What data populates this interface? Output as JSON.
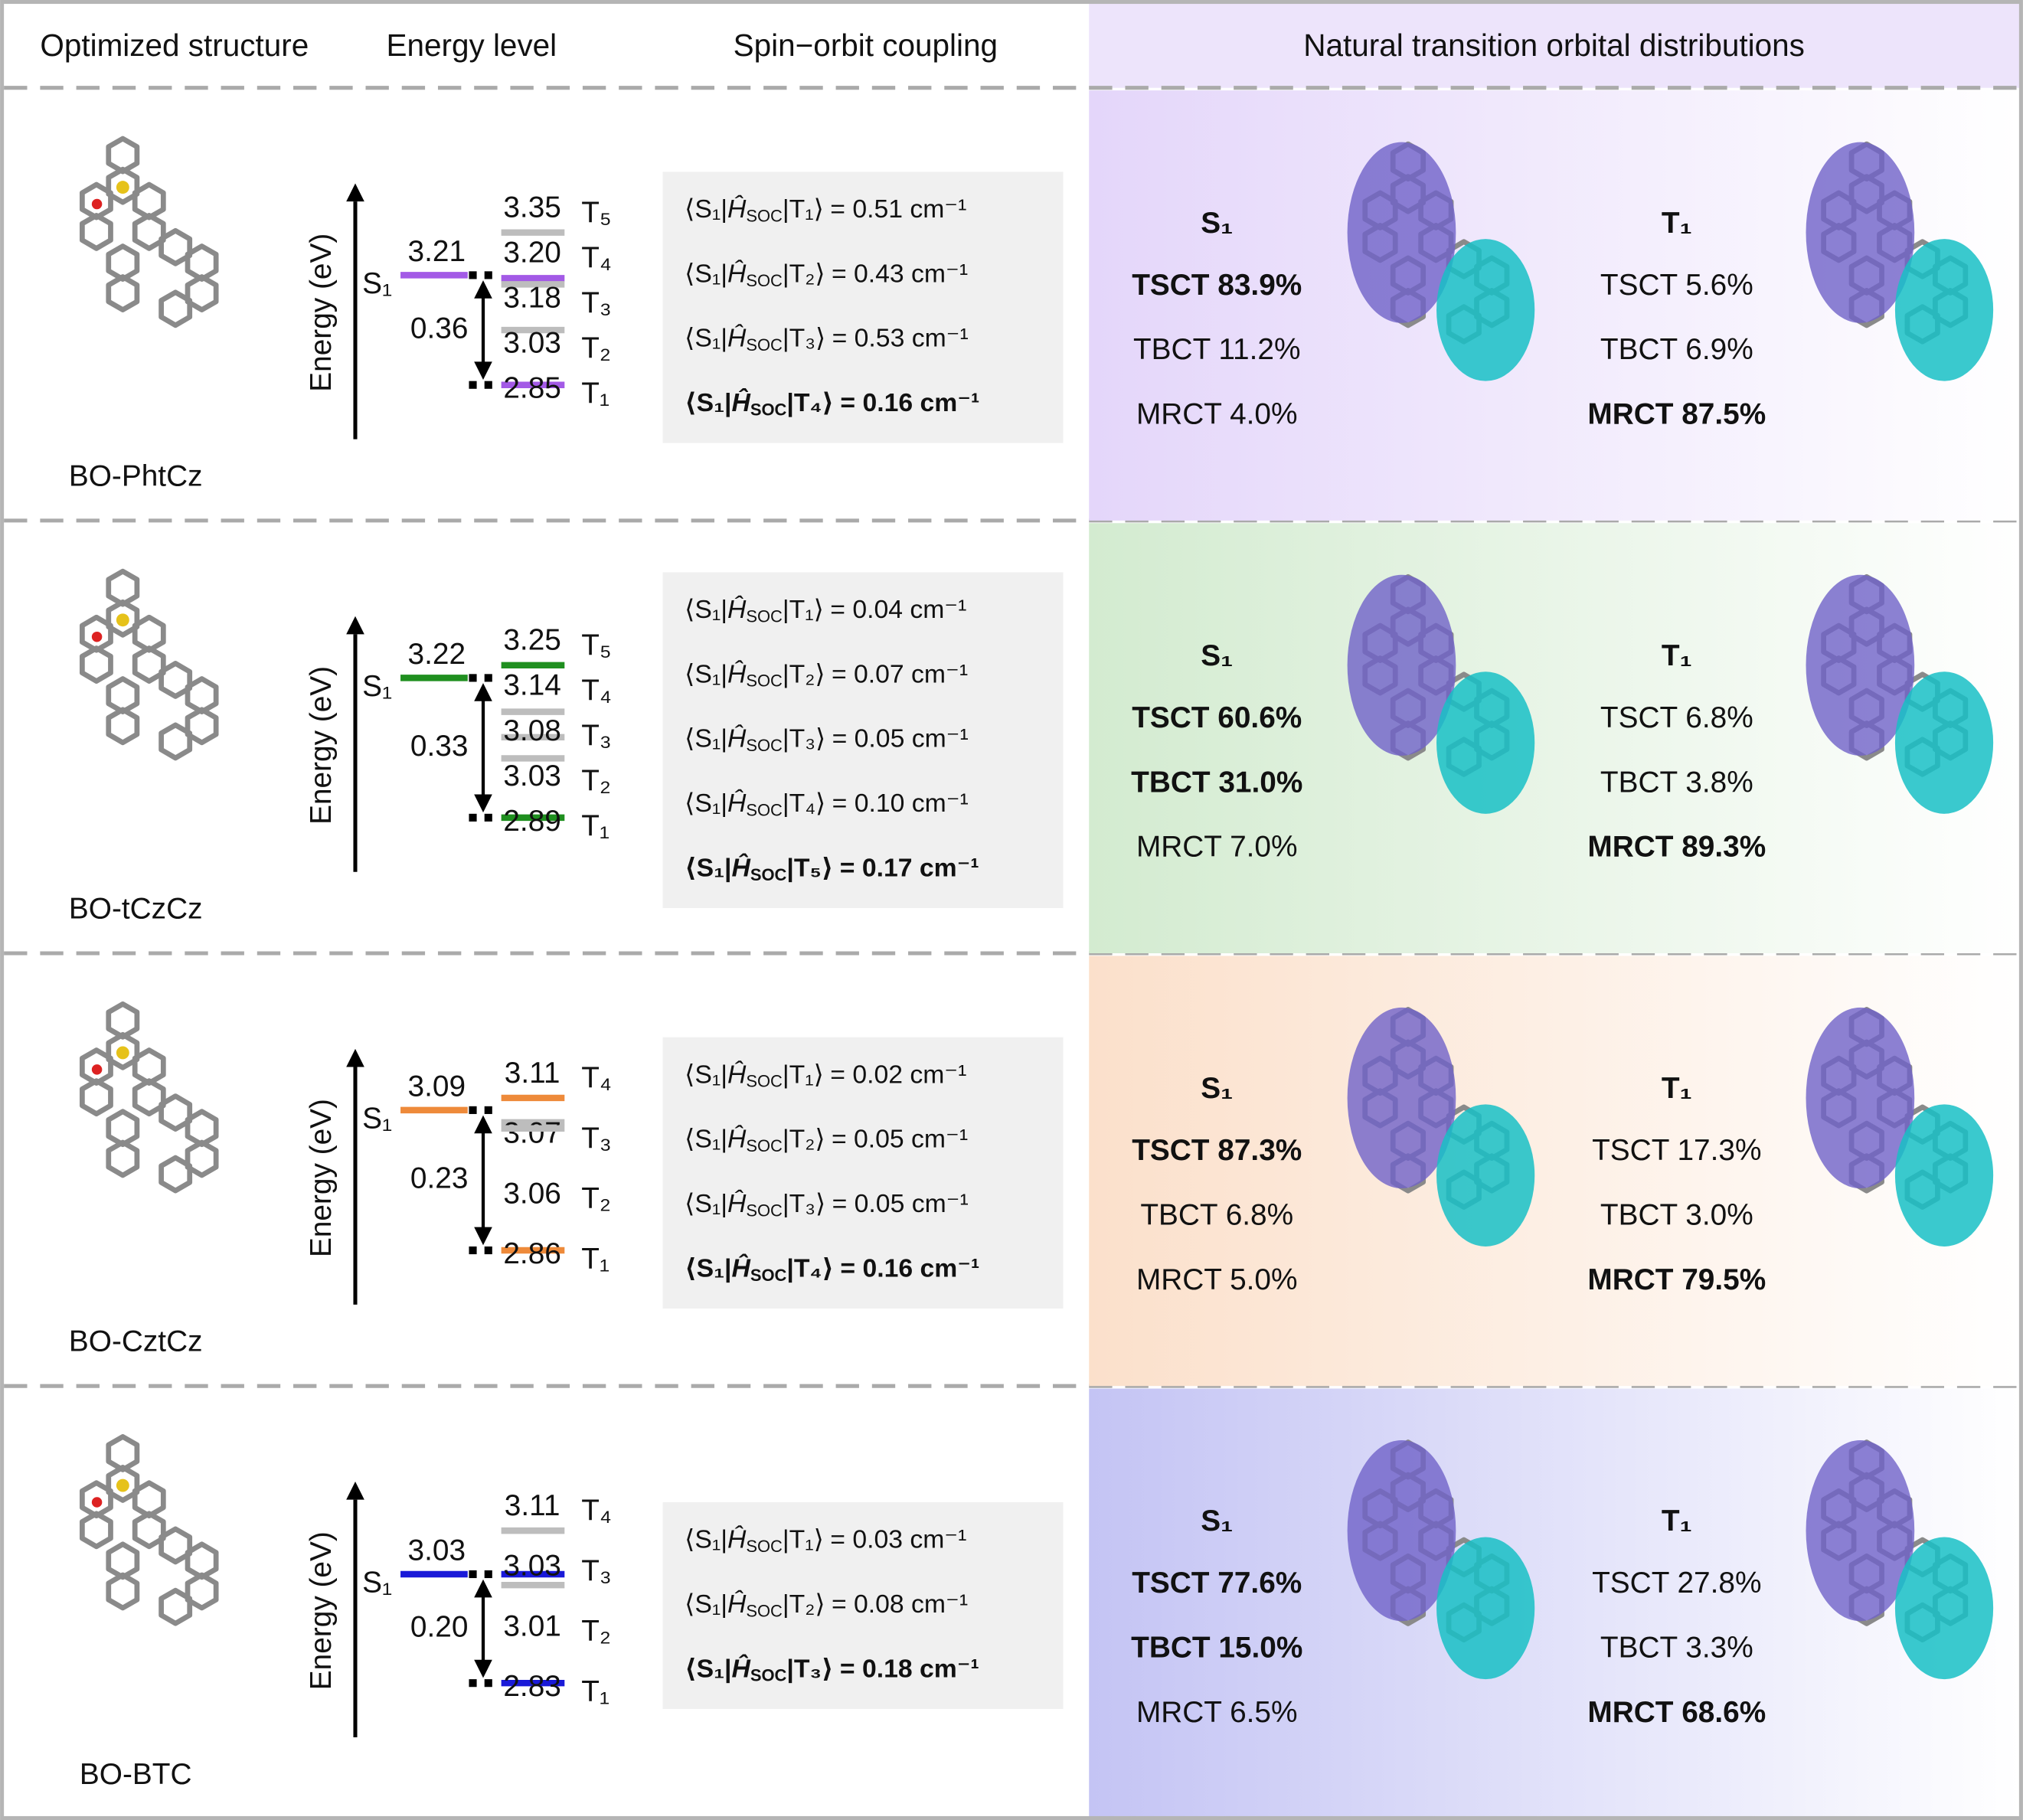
{
  "header": {
    "structure": "Optimized structure",
    "energy": "Energy level",
    "soc": "Spin−orbit coupling",
    "nto": "Natural transition orbital distributions"
  },
  "rows": [
    {
      "molecule": "BO-PhtCz",
      "color": "#a35ae6",
      "background": "#e4d6fa",
      "energy": {
        "axis_label": "Energy (eV)",
        "s1_label": "S₁",
        "s1": "3.21",
        "gap": "0.36",
        "triplets": [
          {
            "label": "T₅",
            "value": "3.35",
            "color": "#bdbdbd"
          },
          {
            "label": "T₄",
            "value": "3.20",
            "color": "#a35ae6"
          },
          {
            "label": "T₃",
            "value": "3.18",
            "color": "#bdbdbd"
          },
          {
            "label": "T₂",
            "value": "3.03",
            "color": "#bdbdbd"
          },
          {
            "label": "T₁",
            "value": "2.85",
            "color": "#a35ae6"
          }
        ]
      },
      "soc": [
        {
          "bra": "⟨S₁|",
          "op": "Ĥ",
          "op_sub": "SOC",
          "ket": "|T₁⟩",
          "value": "= 0.51 cm⁻¹",
          "bold": false
        },
        {
          "bra": "⟨S₁|",
          "op": "Ĥ",
          "op_sub": "SOC",
          "ket": "|T₂⟩",
          "value": "= 0.43 cm⁻¹",
          "bold": false
        },
        {
          "bra": "⟨S₁|",
          "op": "Ĥ",
          "op_sub": "SOC",
          "ket": "|T₃⟩",
          "value": "= 0.53 cm⁻¹",
          "bold": false
        },
        {
          "bra": "⟨S₁|",
          "op": "Ĥ",
          "op_sub": "SOC",
          "ket": "|T₄⟩",
          "value": "= 0.16 cm⁻¹",
          "bold": true
        }
      ],
      "nto": {
        "s1": {
          "title": "S₁",
          "lines": [
            {
              "text": "TSCT 83.9%",
              "bold": true,
              "color": "#1e1030"
            },
            {
              "text": "TBCT 11.2%",
              "bold": false,
              "color": "#4a78c0"
            },
            {
              "text": "MRCT 4.0%",
              "bold": false,
              "color": "#7a68c0"
            }
          ]
        },
        "t1": {
          "title": "T₁",
          "lines": [
            {
              "text": "TSCT 5.6%",
              "bold": false,
              "color": "#111111"
            },
            {
              "text": "TBCT 6.9%",
              "bold": false,
              "color": "#4a78c0"
            },
            {
              "text": "MRCT 87.5%",
              "bold": true,
              "color": "#4a66c4"
            }
          ]
        }
      }
    },
    {
      "molecule": "BO-tCzCz",
      "color": "#1f8f1f",
      "background": "#d3ebd0",
      "energy": {
        "axis_label": "Energy (eV)",
        "s1_label": "S₁",
        "s1": "3.22",
        "gap": "0.33",
        "triplets": [
          {
            "label": "T₅",
            "value": "3.25",
            "color": "#1f8f1f"
          },
          {
            "label": "T₄",
            "value": "3.14",
            "color": "#bdbdbd"
          },
          {
            "label": "T₃",
            "value": "3.08",
            "color": "#bdbdbd"
          },
          {
            "label": "T₂",
            "value": "3.03",
            "color": "#bdbdbd"
          },
          {
            "label": "T₁",
            "value": "2.89",
            "color": "#1f8f1f"
          }
        ]
      },
      "soc": [
        {
          "bra": "⟨S₁|",
          "op": "Ĥ",
          "op_sub": "SOC",
          "ket": "|T₁⟩",
          "value": "= 0.04 cm⁻¹",
          "bold": false
        },
        {
          "bra": "⟨S₁|",
          "op": "Ĥ",
          "op_sub": "SOC",
          "ket": "|T₂⟩",
          "value": "= 0.07 cm⁻¹",
          "bold": false
        },
        {
          "bra": "⟨S₁|",
          "op": "Ĥ",
          "op_sub": "SOC",
          "ket": "|T₃⟩",
          "value": "= 0.05 cm⁻¹",
          "bold": false
        },
        {
          "bra": "⟨S₁|",
          "op": "Ĥ",
          "op_sub": "SOC",
          "ket": "|T₄⟩",
          "value": "= 0.10 cm⁻¹",
          "bold": false
        },
        {
          "bra": "⟨S₁|",
          "op": "Ĥ",
          "op_sub": "SOC",
          "ket": "|T₅⟩",
          "value": "= 0.17 cm⁻¹",
          "bold": true
        }
      ],
      "nto": {
        "s1": {
          "title": "S₁",
          "lines": [
            {
              "text": "TSCT 60.6%",
              "bold": true,
              "color": "#102010"
            },
            {
              "text": "TBCT 31.0%",
              "bold": true,
              "color": "#1e80a0"
            },
            {
              "text": "MRCT 7.0%",
              "bold": false,
              "color": "#4a78c0"
            }
          ]
        },
        "t1": {
          "title": "T₁",
          "lines": [
            {
              "text": "TSCT 6.8%",
              "bold": false,
              "color": "#111111"
            },
            {
              "text": "TBCT 3.8%",
              "bold": false,
              "color": "#4a78c0"
            },
            {
              "text": "MRCT 89.3%",
              "bold": true,
              "color": "#4a66c4"
            }
          ]
        }
      }
    },
    {
      "molecule": "BO-CztCz",
      "color": "#ee8a3a",
      "background": "#fbe0cb",
      "energy": {
        "axis_label": "Energy (eV)",
        "s1_label": "S₁",
        "s1": "3.09",
        "gap": "0.23",
        "triplets": [
          {
            "label": "T₄",
            "value": "3.11",
            "color": "#ee8a3a"
          },
          {
            "label": "T₃",
            "value": "3.07",
            "color": "#bdbdbd"
          },
          {
            "label": "T₂",
            "value": "3.06",
            "color": "#bdbdbd"
          },
          {
            "label": "T₁",
            "value": "2.86",
            "color": "#ee8a3a"
          }
        ]
      },
      "soc": [
        {
          "bra": "⟨S₁|",
          "op": "Ĥ",
          "op_sub": "SOC",
          "ket": "|T₁⟩",
          "value": "= 0.02 cm⁻¹",
          "bold": false
        },
        {
          "bra": "⟨S₁|",
          "op": "Ĥ",
          "op_sub": "SOC",
          "ket": "|T₂⟩",
          "value": "= 0.05 cm⁻¹",
          "bold": false
        },
        {
          "bra": "⟨S₁|",
          "op": "Ĥ",
          "op_sub": "SOC",
          "ket": "|T₃⟩",
          "value": "= 0.05 cm⁻¹",
          "bold": false
        },
        {
          "bra": "⟨S₁|",
          "op": "Ĥ",
          "op_sub": "SOC",
          "ket": "|T₄⟩",
          "value": "= 0.16 cm⁻¹",
          "bold": true
        }
      ],
      "nto": {
        "s1": {
          "title": "S₁",
          "lines": [
            {
              "text": "TSCT 87.3%",
              "bold": true,
              "color": "#2a1a10"
            },
            {
              "text": "TBCT 6.8%",
              "bold": false,
              "color": "#4a78c0"
            },
            {
              "text": "MRCT 5.0%",
              "bold": false,
              "color": "#6f74b8"
            }
          ]
        },
        "t1": {
          "title": "T₁",
          "lines": [
            {
              "text": "TSCT 17.3%",
              "bold": false,
              "color": "#111111"
            },
            {
              "text": "TBCT 3.0%",
              "bold": false,
              "color": "#4a78c0"
            },
            {
              "text": "MRCT 79.5%",
              "bold": true,
              "color": "#4a66c4"
            }
          ]
        }
      }
    },
    {
      "molecule": "BO-BTC",
      "color": "#1a1ad8",
      "background": "#c4c4f4",
      "energy": {
        "axis_label": "Energy (eV)",
        "s1_label": "S₁",
        "s1": "3.03",
        "gap": "0.20",
        "triplets": [
          {
            "label": "T₄",
            "value": "3.11",
            "color": "#bdbdbd"
          },
          {
            "label": "T₃",
            "value": "3.03",
            "color": "#1a1ad8"
          },
          {
            "label": "T₂",
            "value": "3.01",
            "color": "#bdbdbd"
          },
          {
            "label": "T₁",
            "value": "2.83",
            "color": "#1a1ad8"
          }
        ]
      },
      "soc": [
        {
          "bra": "⟨S₁|",
          "op": "Ĥ",
          "op_sub": "SOC",
          "ket": "|T₁⟩",
          "value": "= 0.03 cm⁻¹",
          "bold": false
        },
        {
          "bra": "⟨S₁|",
          "op": "Ĥ",
          "op_sub": "SOC",
          "ket": "|T₂⟩",
          "value": "= 0.08 cm⁻¹",
          "bold": false
        },
        {
          "bra": "⟨S₁|",
          "op": "Ĥ",
          "op_sub": "SOC",
          "ket": "|T₃⟩",
          "value": "= 0.18 cm⁻¹",
          "bold": true
        }
      ],
      "nto": {
        "s1": {
          "title": "S₁",
          "lines": [
            {
              "text": "TSCT 77.6%",
              "bold": true,
              "color": "#101030"
            },
            {
              "text": "TBCT 15.0%",
              "bold": true,
              "color": "#1a5ed8"
            },
            {
              "text": "MRCT 6.5%",
              "bold": false,
              "color": "#4a78c0"
            }
          ]
        },
        "t1": {
          "title": "T₁",
          "lines": [
            {
              "text": "TSCT 27.8%",
              "bold": false,
              "color": "#111111"
            },
            {
              "text": "TBCT 3.3%",
              "bold": false,
              "color": "#4a78c0"
            },
            {
              "text": "MRCT 68.6%",
              "bold": true,
              "color": "#4a66c4"
            }
          ]
        }
      }
    }
  ]
}
